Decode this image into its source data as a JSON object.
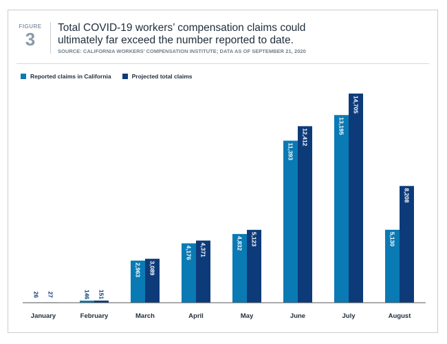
{
  "figure": {
    "label": "FIGURE",
    "number": "3"
  },
  "title_line1": "Total COVID-19 workers’ compensation claims could",
  "title_line2": "ultimately far exceed the number reported to date.",
  "source": "SOURCE: CALIFORNIA WORKERS’ COMPENSATION INSTITUTE; DATA AS OF SEPTEMBER 21, 2020",
  "colors": {
    "reported": "#0a7ab4",
    "projected": "#0d3b7a",
    "axis": "#555555"
  },
  "chart_data": {
    "type": "bar",
    "categories": [
      "January",
      "February",
      "March",
      "April",
      "May",
      "June",
      "July",
      "August"
    ],
    "series": [
      {
        "name": "Reported claims in California",
        "values": [
          26,
          146,
          2963,
          4176,
          4832,
          11393,
          13195,
          5130
        ],
        "labels": [
          "26",
          "146",
          "2,963",
          "4,176",
          "4,832",
          "11,393",
          "13,195",
          "5,130"
        ]
      },
      {
        "name": "Projected total claims",
        "values": [
          27,
          151,
          3089,
          4371,
          5123,
          12412,
          14705,
          8208
        ],
        "labels": [
          "27",
          "151",
          "3,089",
          "4,371",
          "5,123",
          "12,412",
          "14,705",
          "8,208"
        ]
      }
    ],
    "ylim": [
      0,
      14705
    ],
    "grid": false,
    "legend_position": "top-left"
  }
}
